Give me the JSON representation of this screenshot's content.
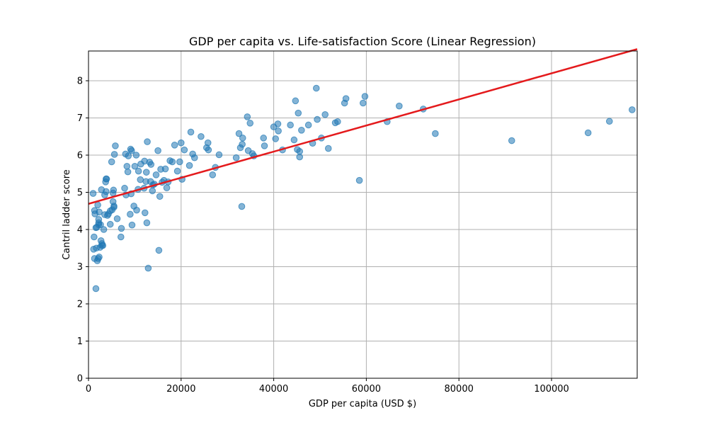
{
  "chart_data": {
    "type": "scatter",
    "title": "GDP per capita vs. Life-satisfaction Score (Linear Regression)",
    "xlabel": "GDP per capita (USD $)",
    "ylabel": "Cantril ladder score",
    "xlim": [
      0,
      118500
    ],
    "ylim": [
      0,
      8.8
    ],
    "xticks": [
      0,
      20000,
      40000,
      60000,
      80000,
      100000
    ],
    "yticks": [
      0,
      1,
      2,
      3,
      4,
      5,
      6,
      7,
      8
    ],
    "grid": true,
    "colors": {
      "points": "#1f77b4",
      "regression": "#e41a1c"
    },
    "regression_line": {
      "x": [
        0,
        118500
      ],
      "y": [
        4.69,
        8.85
      ]
    },
    "points": [
      [
        1000,
        4.97
      ],
      [
        1300,
        4.51
      ],
      [
        1400,
        4.42
      ],
      [
        1200,
        3.8
      ],
      [
        1100,
        3.47
      ],
      [
        1300,
        3.22
      ],
      [
        1700,
        3.5
      ],
      [
        1900,
        3.16
      ],
      [
        2100,
        3.22
      ],
      [
        2300,
        3.26
      ],
      [
        1600,
        2.41
      ],
      [
        1600,
        4.05
      ],
      [
        1800,
        4.06
      ],
      [
        2000,
        4.66
      ],
      [
        2300,
        4.47
      ],
      [
        2200,
        4.27
      ],
      [
        2200,
        4.18
      ],
      [
        2200,
        4.13
      ],
      [
        2600,
        4.13
      ],
      [
        2700,
        3.7
      ],
      [
        2900,
        3.62
      ],
      [
        2900,
        3.57
      ],
      [
        2500,
        3.52
      ],
      [
        3100,
        3.57
      ],
      [
        2800,
        5.07
      ],
      [
        3300,
        4.0
      ],
      [
        3500,
        4.4
      ],
      [
        3500,
        4.93
      ],
      [
        3700,
        5.28
      ],
      [
        3800,
        5.36
      ],
      [
        3900,
        5.36
      ],
      [
        3800,
        5.02
      ],
      [
        4100,
        4.38
      ],
      [
        4300,
        4.42
      ],
      [
        4700,
        4.14
      ],
      [
        4700,
        4.5
      ],
      [
        5000,
        5.82
      ],
      [
        5100,
        4.53
      ],
      [
        5300,
        4.98
      ],
      [
        5300,
        4.75
      ],
      [
        5400,
        5.06
      ],
      [
        5500,
        4.6
      ],
      [
        5500,
        4.63
      ],
      [
        5600,
        6.02
      ],
      [
        5800,
        6.25
      ],
      [
        6200,
        4.29
      ],
      [
        7000,
        3.8
      ],
      [
        7100,
        4.03
      ],
      [
        7800,
        5.11
      ],
      [
        8000,
        6.03
      ],
      [
        8100,
        4.93
      ],
      [
        8300,
        5.7
      ],
      [
        8500,
        5.55
      ],
      [
        8600,
        5.98
      ],
      [
        9000,
        4.41
      ],
      [
        9100,
        6.16
      ],
      [
        9200,
        4.96
      ],
      [
        9300,
        6.12
      ],
      [
        9400,
        4.12
      ],
      [
        9800,
        4.63
      ],
      [
        10000,
        5.7
      ],
      [
        10300,
        6.0
      ],
      [
        10400,
        4.52
      ],
      [
        10700,
        5.08
      ],
      [
        10800,
        5.57
      ],
      [
        11200,
        5.34
      ],
      [
        11300,
        5.76
      ],
      [
        12000,
        5.11
      ],
      [
        12100,
        5.84
      ],
      [
        12200,
        4.45
      ],
      [
        12400,
        5.29
      ],
      [
        12500,
        5.54
      ],
      [
        12600,
        4.18
      ],
      [
        12700,
        6.36
      ],
      [
        12900,
        2.96
      ],
      [
        13200,
        5.81
      ],
      [
        13400,
        5.29
      ],
      [
        13500,
        5.75
      ],
      [
        13800,
        5.04
      ],
      [
        13900,
        5.2
      ],
      [
        14200,
        5.22
      ],
      [
        14600,
        5.47
      ],
      [
        15000,
        6.12
      ],
      [
        15200,
        3.44
      ],
      [
        15400,
        4.89
      ],
      [
        15600,
        5.62
      ],
      [
        15900,
        5.27
      ],
      [
        16300,
        5.32
      ],
      [
        16600,
        5.63
      ],
      [
        16900,
        5.12
      ],
      [
        17200,
        5.28
      ],
      [
        17600,
        5.85
      ],
      [
        18100,
        5.82
      ],
      [
        18600,
        6.27
      ],
      [
        19200,
        5.57
      ],
      [
        19700,
        5.82
      ],
      [
        20000,
        6.33
      ],
      [
        20200,
        5.35
      ],
      [
        20700,
        6.14
      ],
      [
        21800,
        5.72
      ],
      [
        22100,
        6.62
      ],
      [
        22500,
        6.03
      ],
      [
        22900,
        5.93
      ],
      [
        24300,
        6.5
      ],
      [
        25500,
        6.2
      ],
      [
        25800,
        6.33
      ],
      [
        25900,
        6.14
      ],
      [
        26800,
        5.47
      ],
      [
        27400,
        5.67
      ],
      [
        28200,
        6.01
      ],
      [
        31900,
        5.93
      ],
      [
        32500,
        6.58
      ],
      [
        32800,
        6.2
      ],
      [
        33200,
        6.29
      ],
      [
        33100,
        4.62
      ],
      [
        33300,
        6.46
      ],
      [
        34300,
        7.03
      ],
      [
        34500,
        6.12
      ],
      [
        34900,
        6.86
      ],
      [
        35400,
        6.04
      ],
      [
        35700,
        5.98
      ],
      [
        37800,
        6.46
      ],
      [
        38000,
        6.25
      ],
      [
        40000,
        6.76
      ],
      [
        40400,
        6.44
      ],
      [
        40900,
        6.84
      ],
      [
        41000,
        6.65
      ],
      [
        41900,
        6.14
      ],
      [
        43600,
        6.81
      ],
      [
        44400,
        6.41
      ],
      [
        44700,
        7.46
      ],
      [
        45100,
        6.15
      ],
      [
        45300,
        7.13
      ],
      [
        45600,
        6.1
      ],
      [
        45600,
        5.95
      ],
      [
        46000,
        6.67
      ],
      [
        47500,
        6.81
      ],
      [
        48400,
        6.32
      ],
      [
        49200,
        7.8
      ],
      [
        49400,
        6.96
      ],
      [
        50300,
        6.46
      ],
      [
        51100,
        7.09
      ],
      [
        51800,
        6.18
      ],
      [
        53300,
        6.87
      ],
      [
        53800,
        6.9
      ],
      [
        55300,
        7.4
      ],
      [
        55600,
        7.52
      ],
      [
        58500,
        5.32
      ],
      [
        59300,
        7.4
      ],
      [
        59700,
        7.58
      ],
      [
        64500,
        6.9
      ],
      [
        67100,
        7.32
      ],
      [
        72300,
        7.24
      ],
      [
        74900,
        6.58
      ],
      [
        91400,
        6.39
      ],
      [
        107900,
        6.6
      ],
      [
        112500,
        6.91
      ],
      [
        117400,
        7.22
      ]
    ]
  }
}
